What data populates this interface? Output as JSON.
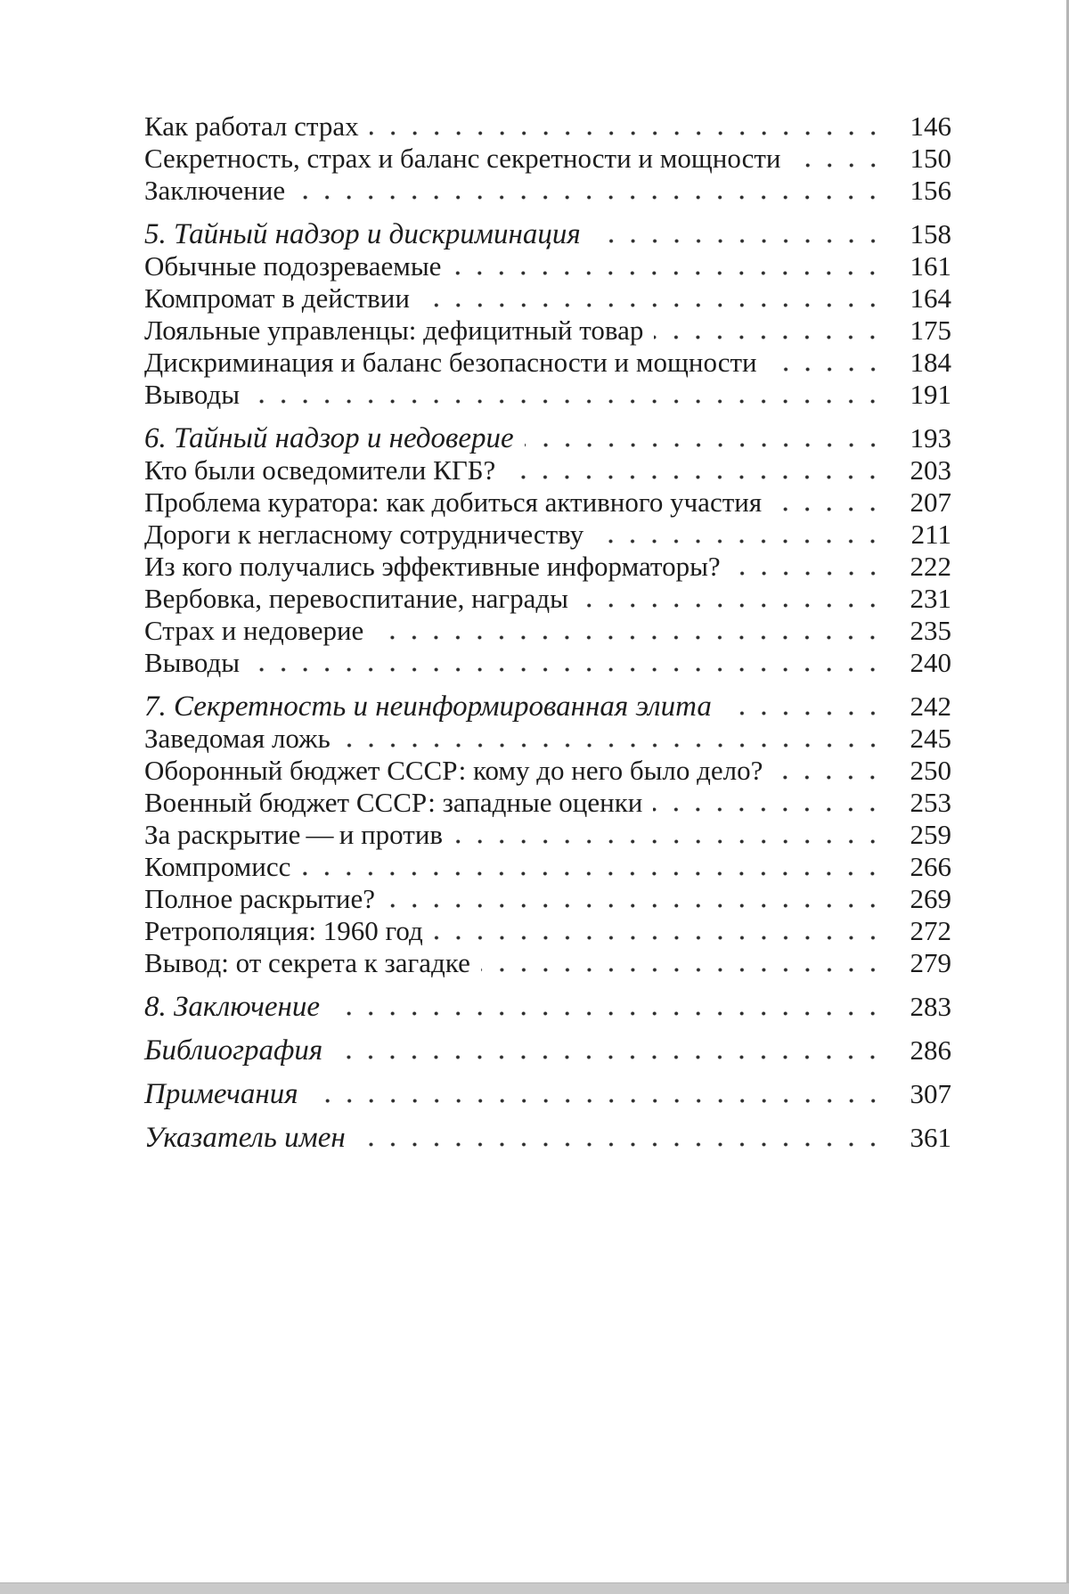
{
  "colors": {
    "background": "#ffffff",
    "text": "#1c1c1c",
    "dot": "#2e2e2e",
    "page_edge": "#b5b5b5",
    "bottom_bar": "#c9c9c9"
  },
  "toc": {
    "sections": [
      {
        "kind": "continuation",
        "entries": [
          {
            "title": "Как работал страх",
            "page": "146",
            "style": "regular"
          },
          {
            "title": "Секретность, страх и баланс секретности и мощности",
            "page": "150",
            "style": "regular"
          },
          {
            "title": "Заключение",
            "page": "156",
            "style": "regular"
          }
        ]
      },
      {
        "kind": "chapter",
        "entries": [
          {
            "title": "5. Тайный надзор и дискриминация",
            "page": "158",
            "style": "chapter"
          },
          {
            "title": "Обычные подозреваемые",
            "page": "161",
            "style": "regular"
          },
          {
            "title": "Компромат в действии",
            "page": "164",
            "style": "regular"
          },
          {
            "title": "Лояльные управленцы: дефицитный товар",
            "page": "175",
            "style": "regular"
          },
          {
            "title": "Дискриминация и баланс безопасности и мощности",
            "page": "184",
            "style": "regular"
          },
          {
            "title": "Выводы",
            "page": "191",
            "style": "regular"
          }
        ]
      },
      {
        "kind": "chapter",
        "entries": [
          {
            "title": "6. Тайный надзор и недоверие",
            "page": "193",
            "style": "chapter"
          },
          {
            "title": "Кто были осведомители КГБ?",
            "page": "203",
            "style": "regular"
          },
          {
            "title": "Проблема куратора: как добиться активного участия",
            "page": "207",
            "style": "regular"
          },
          {
            "title": "Дороги к негласному сотрудничеству",
            "page": "211",
            "style": "regular"
          },
          {
            "title": "Из кого получались эффективные информаторы?",
            "page": "222",
            "style": "regular"
          },
          {
            "title": "Вербовка, перевоспитание, награды",
            "page": "231",
            "style": "regular"
          },
          {
            "title": "Страх и недоверие",
            "page": "235",
            "style": "regular"
          },
          {
            "title": "Выводы",
            "page": "240",
            "style": "regular"
          }
        ]
      },
      {
        "kind": "chapter",
        "entries": [
          {
            "title": "7. Секретность и неинформированная элита",
            "page": "242",
            "style": "chapter"
          },
          {
            "title": "Заведомая ложь",
            "page": "245",
            "style": "regular"
          },
          {
            "title": "Оборонный бюджет СССР: кому до него было дело?",
            "page": "250",
            "style": "regular"
          },
          {
            "title": "Военный бюджет СССР: западные оценки",
            "page": "253",
            "style": "regular"
          },
          {
            "title": "За раскрытие — и против",
            "page": "259",
            "style": "regular"
          },
          {
            "title": "Компромисс",
            "page": "266",
            "style": "regular"
          },
          {
            "title": "Полное раскрытие?",
            "page": "269",
            "style": "regular"
          },
          {
            "title": "Ретрополяция: 1960 год",
            "page": "272",
            "style": "regular"
          },
          {
            "title": "Вывод: от секрета к загадке",
            "page": "279",
            "style": "regular"
          }
        ]
      },
      {
        "kind": "backmatter",
        "entries": [
          {
            "title": "8. Заключение",
            "page": "283",
            "style": "chapter"
          },
          {
            "title": "Библиография",
            "page": "286",
            "style": "chapter"
          },
          {
            "title": "Примечания",
            "page": "307",
            "style": "chapter"
          },
          {
            "title": "Указатель имен",
            "page": "361",
            "style": "chapter"
          }
        ]
      }
    ]
  }
}
